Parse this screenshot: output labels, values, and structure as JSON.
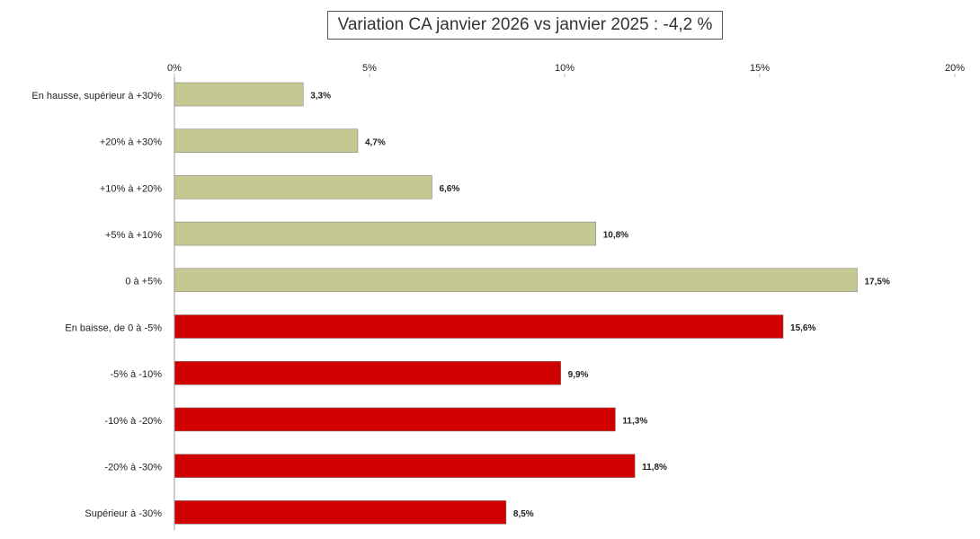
{
  "chart_data": {
    "type": "bar",
    "orientation": "horizontal",
    "title": "Variation CA janvier 2026 vs janvier 2025 : -4,2 %",
    "categories": [
      "En hausse, supérieur à +30%",
      "+20% à +30%",
      "+10% à +20%",
      "+5% à +10%",
      "0 à +5%",
      "En baisse, de 0 à -5%",
      "-5% à -10%",
      "-10% à -20%",
      "-20% à -30%",
      "Supérieur à -30%"
    ],
    "values": [
      3.3,
      4.7,
      6.6,
      10.8,
      17.5,
      15.6,
      9.9,
      11.3,
      11.8,
      8.5
    ],
    "value_labels": [
      "3,3%",
      "4,7%",
      "6,6%",
      "10,8%",
      "17,5%",
      "15,6%",
      "9,9%",
      "11,3%",
      "11,8%",
      "8,5%"
    ],
    "colors": [
      "#c5c991",
      "#c5c991",
      "#c5c991",
      "#c5c991",
      "#c5c991",
      "#d10000",
      "#d10000",
      "#d10000",
      "#d10000",
      "#d10000"
    ],
    "xlim": [
      0,
      20
    ],
    "xticks": [
      {
        "value": 0,
        "label": "0%"
      },
      {
        "value": 5,
        "label": "5%"
      },
      {
        "value": 10,
        "label": "10%"
      },
      {
        "value": 15,
        "label": "15%"
      },
      {
        "value": 20,
        "label": "20%"
      }
    ],
    "grid": false
  }
}
